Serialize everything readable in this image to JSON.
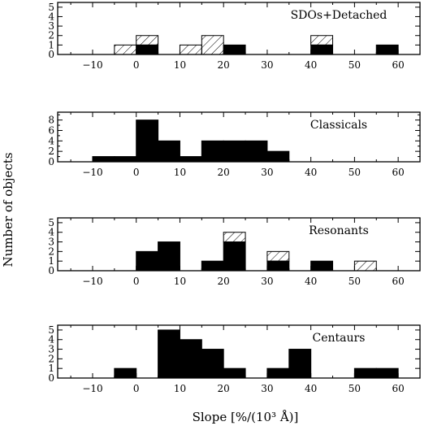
{
  "chart_data": {
    "type": "bar",
    "ylabel": "Number of objects",
    "xlabel": "Slope [%/(10³ Å)]",
    "xlim": [
      -18,
      65
    ],
    "bin_width": 5,
    "xticks": [
      -10,
      0,
      10,
      20,
      30,
      40,
      50,
      60
    ],
    "panels": [
      {
        "label": "SDOs+Detached",
        "ylim": [
          0,
          5.5
        ],
        "yticks": [
          0,
          1,
          2,
          3,
          4,
          5
        ],
        "bars": [
          {
            "x": -5,
            "solid": 0,
            "hatched": 1
          },
          {
            "x": 0,
            "solid": 1,
            "hatched": 1
          },
          {
            "x": 10,
            "solid": 0,
            "hatched": 1
          },
          {
            "x": 15,
            "solid": 0,
            "hatched": 2
          },
          {
            "x": 20,
            "solid": 1,
            "hatched": 0
          },
          {
            "x": 40,
            "solid": 1,
            "hatched": 1
          },
          {
            "x": 55,
            "solid": 1,
            "hatched": 0
          }
        ]
      },
      {
        "label": "Classicals",
        "ylim": [
          0,
          9.5
        ],
        "yticks": [
          0,
          2,
          4,
          6,
          8
        ],
        "bars": [
          {
            "x": -10,
            "solid": 1,
            "hatched": 0
          },
          {
            "x": -5,
            "solid": 1,
            "hatched": 0
          },
          {
            "x": 0,
            "solid": 8,
            "hatched": 0
          },
          {
            "x": 5,
            "solid": 4,
            "hatched": 0
          },
          {
            "x": 10,
            "solid": 1,
            "hatched": 0
          },
          {
            "x": 15,
            "solid": 4,
            "hatched": 0
          },
          {
            "x": 20,
            "solid": 4,
            "hatched": 0
          },
          {
            "x": 25,
            "solid": 4,
            "hatched": 0
          },
          {
            "x": 30,
            "solid": 2,
            "hatched": 0
          }
        ]
      },
      {
        "label": "Resonants",
        "ylim": [
          0,
          5.5
        ],
        "yticks": [
          0,
          1,
          2,
          3,
          4,
          5
        ],
        "bars": [
          {
            "x": 0,
            "solid": 2,
            "hatched": 0
          },
          {
            "x": 5,
            "solid": 3,
            "hatched": 0
          },
          {
            "x": 15,
            "solid": 1,
            "hatched": 0
          },
          {
            "x": 20,
            "solid": 3,
            "hatched": 1
          },
          {
            "x": 30,
            "solid": 1,
            "hatched": 1
          },
          {
            "x": 40,
            "solid": 1,
            "hatched": 0
          },
          {
            "x": 50,
            "solid": 0,
            "hatched": 1
          }
        ]
      },
      {
        "label": "Centaurs",
        "ylim": [
          0,
          5.5
        ],
        "yticks": [
          0,
          1,
          2,
          3,
          4,
          5
        ],
        "bars": [
          {
            "x": -5,
            "solid": 1,
            "hatched": 0
          },
          {
            "x": 5,
            "solid": 5,
            "hatched": 0
          },
          {
            "x": 10,
            "solid": 4,
            "hatched": 0
          },
          {
            "x": 15,
            "solid": 3,
            "hatched": 0
          },
          {
            "x": 20,
            "solid": 1,
            "hatched": 0
          },
          {
            "x": 30,
            "solid": 1,
            "hatched": 0
          },
          {
            "x": 35,
            "solid": 3,
            "hatched": 0
          },
          {
            "x": 50,
            "solid": 1,
            "hatched": 0
          },
          {
            "x": 55,
            "solid": 1,
            "hatched": 0
          }
        ]
      }
    ]
  }
}
